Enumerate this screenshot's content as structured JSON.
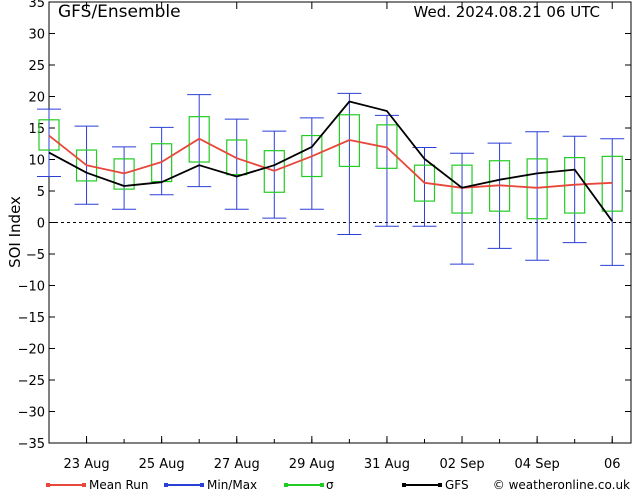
{
  "chart_data": {
    "type": "line",
    "title": "GFS/Ensemble",
    "run_time": "Wed. 2024.08.21   06 UTC",
    "ylabel": "SOI Index",
    "ylim": [
      -35,
      35
    ],
    "yticks": [
      35,
      30,
      25,
      20,
      15,
      10,
      5,
      0,
      -5,
      -10,
      -15,
      -20,
      -25,
      -30,
      -35
    ],
    "xlim": [
      0,
      15.5
    ],
    "x_ticks": [
      {
        "x": 1,
        "label": "23 Aug"
      },
      {
        "x": 3,
        "label": "25 Aug"
      },
      {
        "x": 5,
        "label": "27 Aug"
      },
      {
        "x": 7,
        "label": "29 Aug"
      },
      {
        "x": 9,
        "label": "31 Aug"
      },
      {
        "x": 11,
        "label": "02 Sep"
      },
      {
        "x": 13,
        "label": "04 Sep"
      },
      {
        "x": 15,
        "label": "06"
      }
    ],
    "x": [
      0,
      1,
      2,
      3,
      4,
      5,
      6,
      7,
      8,
      9,
      10,
      11,
      12,
      13,
      14,
      15
    ],
    "series": [
      {
        "name": "Mean Run",
        "color": "#e8473c",
        "values": [
          13.8,
          9.1,
          7.8,
          9.6,
          13.3,
          10.2,
          8.2,
          10.5,
          13.1,
          11.9,
          6.3,
          5.5,
          5.9,
          5.5,
          6.0,
          6.3
        ]
      },
      {
        "name": "GFS",
        "color": "#000000",
        "values": [
          11.1,
          7.9,
          5.8,
          6.4,
          9.1,
          7.3,
          9.1,
          12.0,
          19.2,
          17.7,
          10.1,
          5.5,
          6.8,
          7.8,
          8.4,
          0.2
        ]
      }
    ],
    "minmax": {
      "name": "Min/Max",
      "color": "#2a3fd6",
      "min": [
        7.3,
        2.9,
        2.1,
        4.4,
        5.7,
        2.1,
        0.7,
        2.1,
        -1.9,
        -0.6,
        -0.6,
        -6.6,
        -4.1,
        -6.0,
        -3.2,
        -6.8
      ],
      "max": [
        18.0,
        15.3,
        12.0,
        15.1,
        20.3,
        16.4,
        14.5,
        16.6,
        20.5,
        17.0,
        11.9,
        11.0,
        12.6,
        14.4,
        13.7,
        13.3
      ]
    },
    "sigma": {
      "name": "σ",
      "color": "#22cc22",
      "low": [
        11.5,
        6.6,
        5.3,
        6.5,
        9.6,
        7.6,
        4.8,
        7.3,
        8.9,
        8.6,
        3.4,
        1.5,
        1.8,
        0.6,
        1.5,
        1.8
      ],
      "high": [
        16.3,
        11.5,
        10.1,
        12.5,
        16.8,
        13.1,
        11.4,
        13.8,
        17.1,
        15.5,
        9.1,
        9.1,
        9.8,
        10.1,
        10.3,
        10.5
      ]
    },
    "zero_line": 0,
    "credit": "© weatheronline.co.uk"
  }
}
